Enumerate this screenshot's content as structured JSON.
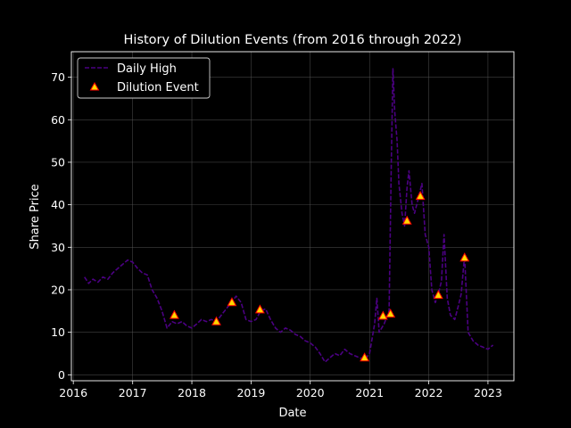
{
  "chart_data": {
    "type": "line",
    "title": "History of Dilution Events (from 2016 through 2022)",
    "xlabel": "Date",
    "ylabel": "Share Price",
    "xlim": [
      "2015-12-20",
      "2023-06-10"
    ],
    "ylim": [
      -1.4,
      76
    ],
    "x_ticks": [
      "2016",
      "2017",
      "2018",
      "2019",
      "2020",
      "2021",
      "2022",
      "2023"
    ],
    "y_ticks": [
      0,
      10,
      20,
      30,
      40,
      50,
      60,
      70
    ],
    "grid": true,
    "legend": {
      "position": "top-left",
      "entries": [
        "Daily High",
        "Dilution Event"
      ]
    },
    "colors": {
      "background": "#000000",
      "line": "#4b0082",
      "marker_fill": "#ffd700",
      "marker_edge": "#ff0000",
      "grid": "#555555",
      "text": "#ffffff"
    },
    "series": [
      {
        "name": "Daily High",
        "style": "dashed",
        "points": [
          [
            "2016-03-10",
            23
          ],
          [
            "2016-04-05",
            21.5
          ],
          [
            "2016-05-01",
            22.5
          ],
          [
            "2016-06-01",
            21.8
          ],
          [
            "2016-07-01",
            23
          ],
          [
            "2016-08-01",
            22.5
          ],
          [
            "2016-09-01",
            24
          ],
          [
            "2016-10-01",
            25
          ],
          [
            "2016-11-01",
            26
          ],
          [
            "2016-12-01",
            27
          ],
          [
            "2017-01-01",
            26.5
          ],
          [
            "2017-02-01",
            25
          ],
          [
            "2017-03-01",
            24
          ],
          [
            "2017-04-01",
            23.5
          ],
          [
            "2017-05-01",
            20
          ],
          [
            "2017-06-01",
            18
          ],
          [
            "2017-07-01",
            15
          ],
          [
            "2017-08-01",
            11
          ],
          [
            "2017-09-01",
            12.5
          ],
          [
            "2017-10-01",
            12
          ],
          [
            "2017-11-01",
            12.5
          ],
          [
            "2017-12-01",
            11.5
          ],
          [
            "2018-01-01",
            11
          ],
          [
            "2018-02-01",
            12
          ],
          [
            "2018-03-01",
            13
          ],
          [
            "2018-04-01",
            12.5
          ],
          [
            "2018-05-01",
            13
          ],
          [
            "2018-06-01",
            12.5
          ],
          [
            "2018-07-01",
            14
          ],
          [
            "2018-08-01",
            15.5
          ],
          [
            "2018-09-01",
            17
          ],
          [
            "2018-10-01",
            18.5
          ],
          [
            "2018-11-01",
            17
          ],
          [
            "2018-12-01",
            13
          ],
          [
            "2019-01-01",
            12.5
          ],
          [
            "2019-02-01",
            13
          ],
          [
            "2019-03-01",
            15
          ],
          [
            "2019-04-01",
            15.5
          ],
          [
            "2019-05-01",
            13
          ],
          [
            "2019-06-01",
            11
          ],
          [
            "2019-07-01",
            10
          ],
          [
            "2019-08-01",
            11
          ],
          [
            "2019-09-01",
            10.5
          ],
          [
            "2019-10-01",
            9.5
          ],
          [
            "2019-11-01",
            9
          ],
          [
            "2019-12-01",
            8
          ],
          [
            "2020-01-01",
            7.5
          ],
          [
            "2020-02-01",
            6.5
          ],
          [
            "2020-03-01",
            5
          ],
          [
            "2020-04-01",
            3
          ],
          [
            "2020-05-01",
            4
          ],
          [
            "2020-06-01",
            5
          ],
          [
            "2020-07-01",
            4.5
          ],
          [
            "2020-08-01",
            6
          ],
          [
            "2020-09-01",
            5
          ],
          [
            "2020-10-01",
            4.5
          ],
          [
            "2020-11-01",
            4
          ],
          [
            "2020-12-01",
            3.5
          ],
          [
            "2021-01-01",
            5
          ],
          [
            "2021-02-01",
            12
          ],
          [
            "2021-02-15",
            18
          ],
          [
            "2021-03-01",
            10
          ],
          [
            "2021-04-01",
            12
          ],
          [
            "2021-05-01",
            15
          ],
          [
            "2021-05-15",
            50
          ],
          [
            "2021-05-25",
            72
          ],
          [
            "2021-06-05",
            62
          ],
          [
            "2021-06-20",
            55
          ],
          [
            "2021-07-01",
            45
          ],
          [
            "2021-07-20",
            38
          ],
          [
            "2021-08-05",
            35
          ],
          [
            "2021-08-20",
            44
          ],
          [
            "2021-09-01",
            48
          ],
          [
            "2021-09-20",
            40
          ],
          [
            "2021-10-05",
            38
          ],
          [
            "2021-11-01",
            42
          ],
          [
            "2021-11-20",
            45
          ],
          [
            "2021-12-10",
            33
          ],
          [
            "2022-01-01",
            30
          ],
          [
            "2022-01-20",
            20
          ],
          [
            "2022-02-10",
            17
          ],
          [
            "2022-03-01",
            19
          ],
          [
            "2022-03-20",
            22
          ],
          [
            "2022-04-05",
            33
          ],
          [
            "2022-04-25",
            18
          ],
          [
            "2022-05-15",
            14
          ],
          [
            "2022-06-10",
            13
          ],
          [
            "2022-07-01",
            16
          ],
          [
            "2022-07-20",
            19
          ],
          [
            "2022-08-10",
            28
          ],
          [
            "2022-09-01",
            10
          ],
          [
            "2022-10-01",
            8
          ],
          [
            "2022-11-01",
            7
          ],
          [
            "2022-12-01",
            6.5
          ],
          [
            "2023-01-01",
            6
          ],
          [
            "2023-02-01",
            7
          ]
        ]
      },
      {
        "name": "Dilution Event",
        "style": "marker-triangle",
        "points": [
          [
            "2017-09-15",
            14.0
          ],
          [
            "2018-06-01",
            12.5
          ],
          [
            "2018-09-05",
            17.0
          ],
          [
            "2019-02-25",
            15.3
          ],
          [
            "2020-12-01",
            4.0
          ],
          [
            "2021-03-25",
            13.8
          ],
          [
            "2021-05-10",
            14.3
          ],
          [
            "2021-08-20",
            36.2
          ],
          [
            "2021-11-10",
            42.0
          ],
          [
            "2022-03-01",
            18.7
          ],
          [
            "2022-08-10",
            27.5
          ]
        ]
      }
    ]
  }
}
